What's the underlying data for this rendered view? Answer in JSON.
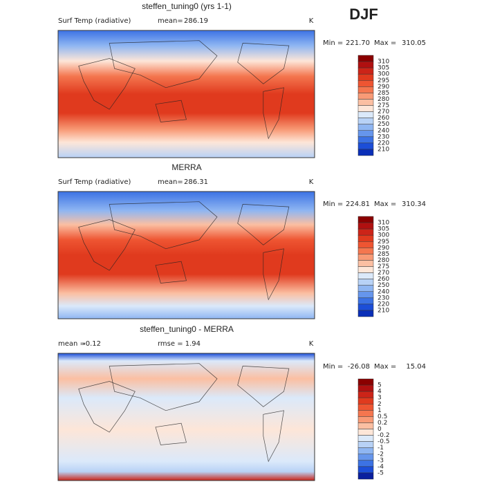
{
  "season": "DJF",
  "panels": [
    {
      "title": "steffen_tuning0 (yrs 1-1)",
      "variable": "Surf Temp (radiative)",
      "stat1_label": "mean=",
      "stat1": "286.19",
      "units": "K",
      "min_label": "Min =",
      "min": "221.70",
      "max_label": "Max =",
      "max": "310.05",
      "levels": [
        310,
        305,
        300,
        295,
        290,
        285,
        280,
        275,
        270,
        260,
        250,
        240,
        230,
        220,
        210
      ],
      "colors": [
        "#8b0000",
        "#b01010",
        "#cc2418",
        "#e03a1e",
        "#ee5532",
        "#f4764f",
        "#f89a76",
        "#fbbfa2",
        "#fde6d8",
        "#dbe9fa",
        "#b8d2f6",
        "#8fb6f2",
        "#6696ec",
        "#3c72e4",
        "#1c4ed8",
        "#0a2fb8"
      ]
    },
    {
      "title": "MERRA",
      "variable": "Surf Temp (radiative)",
      "stat1_label": "mean=",
      "stat1": "286.31",
      "units": "K",
      "min_label": "Min =",
      "min": "224.81",
      "max_label": "Max =",
      "max": "310.34",
      "levels": [
        310,
        305,
        300,
        295,
        290,
        285,
        280,
        275,
        270,
        260,
        250,
        240,
        230,
        220,
        210
      ],
      "colors": [
        "#8b0000",
        "#b01010",
        "#cc2418",
        "#e03a1e",
        "#ee5532",
        "#f4764f",
        "#f89a76",
        "#fbbfa2",
        "#fde6d8",
        "#dbe9fa",
        "#b8d2f6",
        "#8fb6f2",
        "#6696ec",
        "#3c72e4",
        "#1c4ed8",
        "#0a2fb8"
      ]
    },
    {
      "title": "steffen_tuning0 - MERRA",
      "stat1_label": "mean =",
      "stat1": "-0.12",
      "stat2_label": "rmse =",
      "stat2": "1.94",
      "units": "K",
      "min_label": "Min =",
      "min": "-26.08",
      "max_label": "Max =",
      "max": "15.04",
      "levels": [
        5,
        4,
        3,
        2,
        1,
        0.5,
        0.2,
        0,
        -0.2,
        -0.5,
        -1,
        -2,
        -3,
        -4,
        -5
      ],
      "colors": [
        "#8b0000",
        "#b01010",
        "#cc2418",
        "#e03a1e",
        "#ee5532",
        "#f4764f",
        "#f89a76",
        "#fbbfa2",
        "#fde6d8",
        "#dbe9fa",
        "#b8d2f6",
        "#8fb6f2",
        "#6696ec",
        "#3c72e4",
        "#1c4ed8",
        "#0a1f9e"
      ]
    }
  ]
}
